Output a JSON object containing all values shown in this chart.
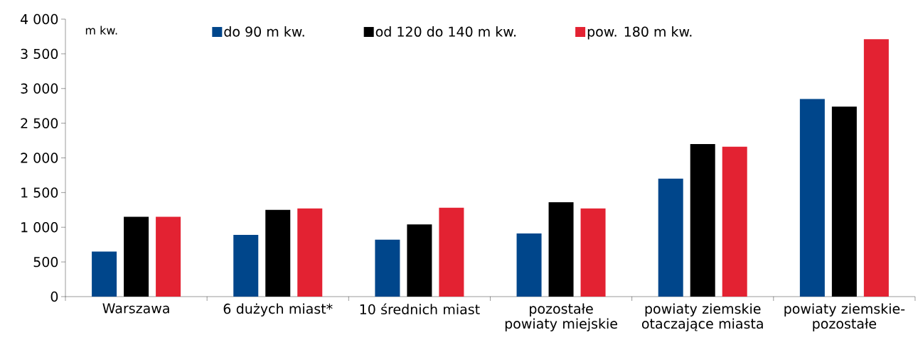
{
  "chart_data": {
    "type": "bar",
    "ylabel": "m kw.",
    "categories": [
      "Warszawa",
      "6 dużych miast*",
      "10 średnich miast",
      "pozostałe powiaty miejskie",
      "powiaty ziemskie otaczające miasta",
      "powiaty ziemskie-pozostałe"
    ],
    "series": [
      {
        "name": "do 90 m kw.",
        "color": "#00468b",
        "values": [
          650,
          890,
          820,
          910,
          1700,
          2850
        ]
      },
      {
        "name": "od 120 do 140 m kw.",
        "color": "#000000",
        "values": [
          1150,
          1250,
          1040,
          1360,
          2200,
          2740
        ]
      },
      {
        "name": "pow. 180 m kw.",
        "color": "#e32232",
        "values": [
          1150,
          1270,
          1280,
          1270,
          2160,
          3710
        ]
      }
    ],
    "ylim": [
      0,
      4000
    ],
    "yticks": [
      0,
      500,
      {
        "value": 1000,
        "label": "1 000"
      },
      {
        "value": 1500,
        "label": "1 500"
      },
      {
        "value": 2000,
        "label": "2 000"
      },
      {
        "value": 2500,
        "label": "2 500"
      },
      {
        "value": 3000,
        "label": "3 000"
      },
      {
        "value": 3500,
        "label": "3 500"
      },
      {
        "value": 4000,
        "label": "4 000"
      }
    ],
    "grid": false,
    "legend": "top"
  }
}
